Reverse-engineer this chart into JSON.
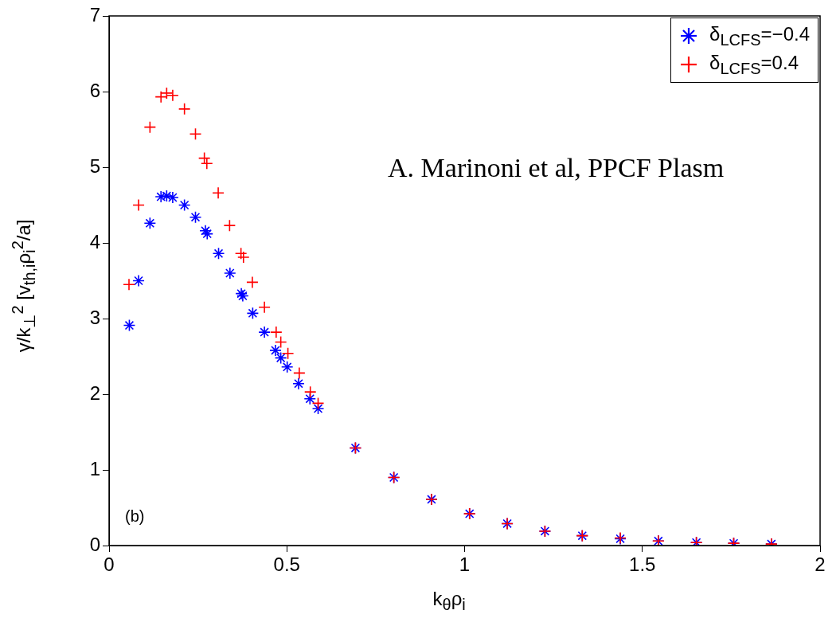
{
  "chart_data": {
    "type": "scatter",
    "xlabel": "k$_{θ}$ρ$_{i}$",
    "ylabel": "γ/k$_{⊥}$$^{2}$ [v$_{th,i}$ρ$_{i}$$^{2}$/a]",
    "xlim": [
      0,
      2
    ],
    "xticks": [
      0,
      0.5,
      1,
      1.5,
      2
    ],
    "ylim": [
      0,
      7
    ],
    "yticks": [
      0,
      1,
      2,
      3,
      4,
      5,
      6,
      7
    ],
    "grid": false,
    "legend": "top right",
    "annotations": [
      "(b)",
      "A. Marinoni et al, PPCF Plasm"
    ],
    "series": [
      {
        "name": "δ$_{LCFS}$=−0.4",
        "color": "#0000ff",
        "x": [
          0.057,
          0.083,
          0.115,
          0.146,
          0.162,
          0.179,
          0.212,
          0.243,
          0.271,
          0.276,
          0.308,
          0.34,
          0.372,
          0.376,
          0.404,
          0.437,
          0.468,
          0.483,
          0.501,
          0.533,
          0.565,
          0.588,
          0.693,
          0.801,
          0.907,
          1.014,
          1.12,
          1.226,
          1.331,
          1.438,
          1.545,
          1.652,
          1.757,
          1.863
        ],
        "values": [
          2.91,
          3.5,
          4.26,
          4.61,
          4.62,
          4.6,
          4.5,
          4.34,
          4.16,
          4.12,
          3.86,
          3.6,
          3.33,
          3.3,
          3.07,
          2.82,
          2.58,
          2.48,
          2.36,
          2.14,
          1.94,
          1.81,
          1.29,
          0.9,
          0.61,
          0.42,
          0.29,
          0.19,
          0.13,
          0.09,
          0.06,
          0.04,
          0.03,
          0.02
        ]
      },
      {
        "name": "δ$_{LCFS}$=0.4",
        "color": "#ff0000",
        "marker": "cross",
        "x": [
          0.056,
          0.083,
          0.115,
          0.146,
          0.162,
          0.179,
          0.212,
          0.243,
          0.268,
          0.275,
          0.307,
          0.339,
          0.371,
          0.378,
          0.403,
          0.437,
          0.47,
          0.483,
          0.503,
          0.535,
          0.566,
          0.588,
          0.693,
          0.801,
          0.907,
          1.014,
          1.12,
          1.226,
          1.331,
          1.438,
          1.545,
          1.652,
          1.757,
          1.863
        ],
        "values": [
          3.45,
          4.5,
          5.53,
          5.93,
          5.98,
          5.95,
          5.77,
          5.44,
          5.12,
          5.05,
          4.66,
          4.23,
          3.86,
          3.81,
          3.48,
          3.15,
          2.82,
          2.69,
          2.54,
          2.28,
          2.03,
          1.88,
          1.29,
          0.9,
          0.61,
          0.42,
          0.29,
          0.19,
          0.13,
          0.1,
          0.06,
          0.04,
          0.03,
          0.02
        ]
      }
    ]
  }
}
